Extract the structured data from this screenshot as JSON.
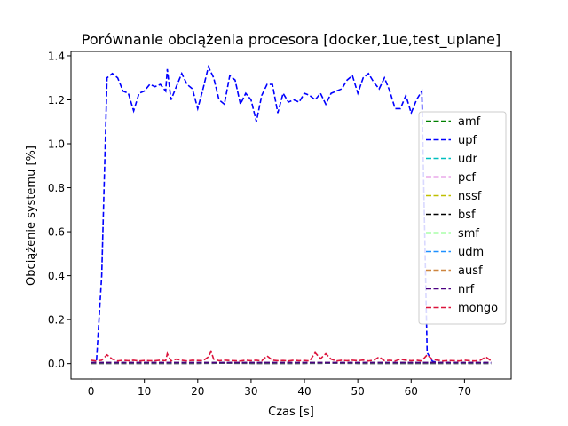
{
  "chart_data": {
    "type": "line",
    "title": "Porównanie obciążenia procesora [docker,1ue,test_uplane]",
    "xlabel": "Czas [s]",
    "ylabel": "Obciążenie systemu [%]",
    "xlim": [
      -3.75,
      78.75
    ],
    "ylim": [
      -0.07,
      1.42
    ],
    "xticks": [
      0,
      10,
      20,
      30,
      40,
      50,
      60,
      70
    ],
    "yticks": [
      0.0,
      0.2,
      0.4,
      0.6,
      0.8,
      1.0,
      1.2,
      1.4
    ],
    "ytick_labels": [
      "0.0",
      "0.2",
      "0.4",
      "0.6",
      "0.8",
      "1.0",
      "1.2",
      "1.4"
    ],
    "line_style": "dashed",
    "grid": false,
    "legend_position": "center-right",
    "series": [
      {
        "name": "amf",
        "color": "#008000",
        "x": [
          0,
          10,
          20,
          30,
          40,
          50,
          60,
          70,
          75
        ],
        "y": [
          0.002,
          0.002,
          0.002,
          0.002,
          0.002,
          0.002,
          0.002,
          0.002,
          0.002
        ]
      },
      {
        "name": "upf",
        "color": "#0000ff",
        "x": [
          0,
          1,
          2,
          3,
          4,
          5,
          6,
          7,
          8,
          9,
          10,
          11,
          12,
          13,
          14,
          14.3,
          15,
          16,
          17,
          18,
          19,
          20,
          21,
          22,
          23,
          24,
          25,
          26,
          27,
          28,
          29,
          30,
          31,
          32,
          33,
          34,
          35,
          36,
          37,
          38,
          39,
          40,
          41,
          42,
          43,
          44,
          45,
          46,
          47,
          48,
          49,
          50,
          51,
          52,
          53,
          54,
          55,
          56,
          57,
          58,
          59,
          60,
          61,
          62,
          63,
          64,
          65,
          66,
          70,
          75
        ],
        "y": [
          0.005,
          0.005,
          0.4,
          1.3,
          1.32,
          1.3,
          1.24,
          1.23,
          1.15,
          1.23,
          1.24,
          1.27,
          1.26,
          1.27,
          1.24,
          1.34,
          1.2,
          1.26,
          1.32,
          1.27,
          1.25,
          1.16,
          1.25,
          1.35,
          1.3,
          1.2,
          1.18,
          1.31,
          1.29,
          1.18,
          1.23,
          1.2,
          1.1,
          1.22,
          1.27,
          1.27,
          1.14,
          1.23,
          1.19,
          1.2,
          1.19,
          1.23,
          1.22,
          1.2,
          1.23,
          1.18,
          1.23,
          1.24,
          1.25,
          1.29,
          1.31,
          1.23,
          1.3,
          1.32,
          1.28,
          1.25,
          1.3,
          1.24,
          1.16,
          1.16,
          1.22,
          1.14,
          1.2,
          1.24,
          0.05,
          0.01,
          0.005,
          0.005,
          0.003,
          0.003
        ]
      },
      {
        "name": "udr",
        "color": "#00bfbf",
        "x": [
          0,
          10,
          20,
          30,
          40,
          50,
          60,
          70,
          75
        ],
        "y": [
          0.003,
          0.003,
          0.003,
          0.003,
          0.003,
          0.003,
          0.003,
          0.003,
          0.003
        ]
      },
      {
        "name": "pcf",
        "color": "#bf00bf",
        "x": [
          0,
          10,
          20,
          30,
          40,
          50,
          60,
          70,
          75
        ],
        "y": [
          0.003,
          0.003,
          0.003,
          0.003,
          0.003,
          0.003,
          0.003,
          0.003,
          0.003
        ]
      },
      {
        "name": "nssf",
        "color": "#bfbf00",
        "x": [
          0,
          10,
          20,
          30,
          40,
          50,
          60,
          70,
          75
        ],
        "y": [
          0.004,
          0.004,
          0.004,
          0.004,
          0.004,
          0.004,
          0.004,
          0.004,
          0.004
        ]
      },
      {
        "name": "bsf",
        "color": "#000000",
        "x": [
          0,
          5,
          10,
          15,
          20,
          25,
          30,
          35,
          40,
          45,
          50,
          55,
          60,
          65,
          70,
          75
        ],
        "y": [
          0.001,
          0.001,
          0.001,
          0.001,
          0.001,
          0.002,
          0.001,
          0.001,
          0.001,
          0.002,
          0.001,
          0.001,
          0.001,
          0.001,
          0.001,
          0.001
        ]
      },
      {
        "name": "smf",
        "color": "#00ff00",
        "x": [
          0,
          10,
          20,
          30,
          40,
          50,
          60,
          70,
          75
        ],
        "y": [
          0.004,
          0.004,
          0.004,
          0.004,
          0.004,
          0.004,
          0.004,
          0.004,
          0.004
        ]
      },
      {
        "name": "udm",
        "color": "#1e90ff",
        "x": [
          0,
          10,
          20,
          30,
          40,
          50,
          60,
          70,
          75
        ],
        "y": [
          0.003,
          0.003,
          0.003,
          0.003,
          0.003,
          0.003,
          0.003,
          0.003,
          0.003
        ]
      },
      {
        "name": "ausf",
        "color": "#cd853f",
        "x": [
          0,
          10,
          20,
          30,
          40,
          50,
          60,
          70,
          75
        ],
        "y": [
          0.004,
          0.004,
          0.004,
          0.004,
          0.004,
          0.004,
          0.004,
          0.004,
          0.004
        ]
      },
      {
        "name": "nrf",
        "color": "#4b0082",
        "x": [
          0,
          10,
          20,
          30,
          40,
          50,
          60,
          70,
          75
        ],
        "y": [
          0.005,
          0.005,
          0.005,
          0.005,
          0.005,
          0.005,
          0.005,
          0.005,
          0.005
        ]
      },
      {
        "name": "mongo",
        "color": "#dc143c",
        "x": [
          0,
          1,
          2,
          3,
          4,
          5,
          6,
          7,
          8,
          9,
          10,
          11,
          12,
          13,
          14,
          14.3,
          15,
          16,
          17,
          18,
          19,
          20,
          21,
          22,
          22.5,
          23,
          24,
          25,
          26,
          27,
          28,
          29,
          30,
          31,
          32,
          33,
          34,
          35,
          36,
          37,
          38,
          39,
          40,
          41,
          42,
          43,
          44,
          45,
          46,
          47,
          48,
          49,
          50,
          51,
          52,
          53,
          54,
          55,
          56,
          57,
          58,
          59,
          60,
          61,
          62,
          63,
          64,
          65,
          66,
          67,
          68,
          69,
          70,
          71,
          72,
          73,
          74,
          75
        ],
        "y": [
          0.015,
          0.012,
          0.015,
          0.04,
          0.02,
          0.012,
          0.015,
          0.013,
          0.015,
          0.012,
          0.014,
          0.013,
          0.013,
          0.015,
          0.013,
          0.045,
          0.012,
          0.02,
          0.015,
          0.012,
          0.015,
          0.014,
          0.013,
          0.03,
          0.055,
          0.02,
          0.013,
          0.015,
          0.014,
          0.013,
          0.012,
          0.015,
          0.013,
          0.015,
          0.012,
          0.035,
          0.015,
          0.013,
          0.014,
          0.012,
          0.015,
          0.013,
          0.014,
          0.012,
          0.05,
          0.022,
          0.045,
          0.02,
          0.012,
          0.015,
          0.013,
          0.015,
          0.013,
          0.016,
          0.012,
          0.015,
          0.03,
          0.013,
          0.015,
          0.012,
          0.02,
          0.015,
          0.013,
          0.015,
          0.012,
          0.04,
          0.018,
          0.015,
          0.012,
          0.014,
          0.013,
          0.012,
          0.015,
          0.013,
          0.012,
          0.015,
          0.03,
          0.012
        ]
      }
    ]
  }
}
